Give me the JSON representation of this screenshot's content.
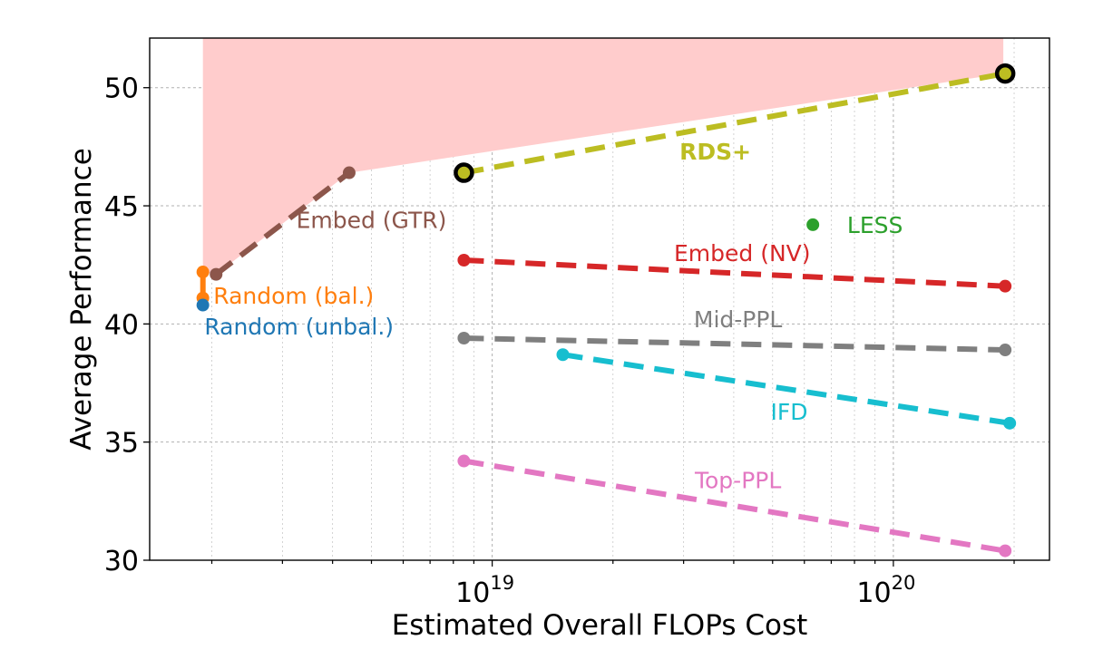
{
  "chart_data": {
    "type": "line",
    "title": "",
    "xlabel": "Estimated Overall FLOPs Cost",
    "ylabel": "Average Performance",
    "xscale": "log",
    "xlim": [
      1.4e+18,
      2.45e+20
    ],
    "ylim": [
      30,
      52.1
    ],
    "grid": "both (major and minor x), dashed",
    "legend": "none (inline labels)",
    "y_ticks": [
      {
        "value": 30,
        "label": "30"
      },
      {
        "value": 35,
        "label": "35"
      },
      {
        "value": 40,
        "label": "40"
      },
      {
        "value": 45,
        "label": "45"
      },
      {
        "value": 50,
        "label": "50"
      }
    ],
    "x_ticks": [
      {
        "value": 1e+19,
        "base": "10",
        "exp": "19"
      },
      {
        "value": 1e+20,
        "base": "10",
        "exp": "20"
      }
    ],
    "shaded_region": {
      "color": "#ffcccc",
      "description": "area above Pareto frontier",
      "points": [
        [
          1.9e+18,
          42.2
        ],
        [
          2.05e+18,
          42.1
        ],
        [
          4.4e+18,
          46.4
        ],
        [
          1.88e+20,
          50.6
        ],
        [
          1.88e+20,
          52.1
        ],
        [
          1.9e+18,
          52.1
        ]
      ]
    },
    "series": [
      {
        "name": "RDS+",
        "color": "#bcbd22",
        "bold": true,
        "x": [
          8.5e+18,
          1.9e+20
        ],
        "y": [
          46.4,
          50.6
        ],
        "label_pos": [
          3.6e+19,
          47.3
        ],
        "highlight_endpoints": true
      },
      {
        "name": "Embed (GTR)",
        "color": "#8c564b",
        "x": [
          2.05e+18,
          4.4e+18
        ],
        "y": [
          42.1,
          46.4
        ],
        "label_pos": [
          5e+18,
          44.4
        ]
      },
      {
        "name": "LESS",
        "color": "#2ca02c",
        "x": [
          6.3e+19
        ],
        "y": [
          44.2
        ],
        "label_pos": [
          9e+19,
          44.2
        ]
      },
      {
        "name": "Embed (NV)",
        "color": "#d62728",
        "x": [
          8.5e+18,
          1.9e+20
        ],
        "y": [
          42.7,
          41.6
        ],
        "label_pos": [
          4.2e+19,
          43.0
        ]
      },
      {
        "name": "Random (bal.)",
        "color": "#ff7f0e",
        "x": [
          1.9e+18,
          1.9e+18
        ],
        "y": [
          42.2,
          41.1
        ],
        "label_pos": [
          3.2e+18,
          41.2
        ]
      },
      {
        "name": "Random (unbal.)",
        "color": "#1f77b4",
        "x": [
          1.9e+18
        ],
        "y": [
          40.8
        ],
        "label_pos": [
          3.3e+18,
          39.9
        ]
      },
      {
        "name": "Mid-PPL",
        "color": "#7f7f7f",
        "x": [
          8.5e+18,
          1.9e+20
        ],
        "y": [
          39.4,
          38.9
        ],
        "label_pos": [
          4.1e+19,
          40.2
        ]
      },
      {
        "name": "IFD",
        "color": "#17becf",
        "x": [
          1.5e+19,
          1.95e+20
        ],
        "y": [
          38.7,
          35.8
        ],
        "label_pos": [
          5.5e+19,
          36.3
        ]
      },
      {
        "name": "Top-PPL",
        "color": "#e377c2",
        "x": [
          8.5e+18,
          1.9e+20
        ],
        "y": [
          34.2,
          30.4
        ],
        "label_pos": [
          4.1e+19,
          33.4
        ]
      }
    ]
  }
}
